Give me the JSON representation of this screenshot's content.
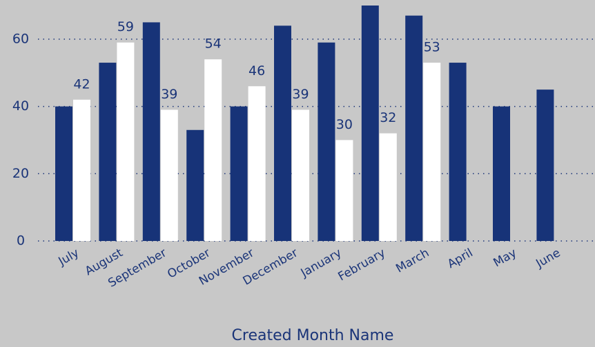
{
  "chart_data": {
    "type": "bar",
    "x_label": "Created Month Name",
    "categories": [
      "July",
      "August",
      "September",
      "October",
      "November",
      "December",
      "January",
      "February",
      "March",
      "April",
      "May",
      "June"
    ],
    "series": [
      {
        "color": "#173378",
        "values": [
          40,
          53,
          65,
          33,
          40,
          64,
          59,
          70,
          67,
          53,
          40,
          45
        ]
      },
      {
        "color": "#ffffff",
        "values": [
          42,
          59,
          39,
          54,
          46,
          39,
          30,
          32,
          53,
          null,
          null,
          null
        ],
        "data_labels": true
      }
    ],
    "ylim": [
      0,
      70
    ],
    "yticks": [
      0,
      20,
      40,
      60
    ],
    "grid": true
  }
}
